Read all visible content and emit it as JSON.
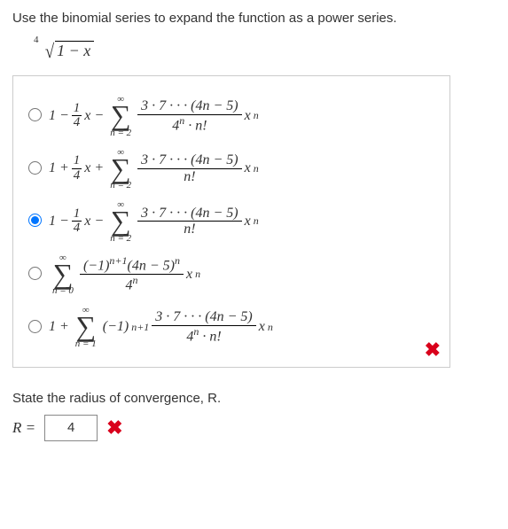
{
  "prompt": "Use the binomial series to expand the function as a power series.",
  "root_degree": "4",
  "radicand": "1 − x",
  "options": [
    {
      "selected": false,
      "prefix_parts": [
        "1 −",
        "frac14",
        "x −"
      ],
      "sigma_lower": "n = 2",
      "numerator": "3 · 7 · · · (4n − 5)",
      "denominator_parts": [
        "4",
        "sup_n",
        " · n!"
      ],
      "trailing_parts": [
        "x",
        "sup_n"
      ]
    },
    {
      "selected": false,
      "prefix_parts": [
        "1 +",
        "frac14",
        "x +"
      ],
      "sigma_lower": "n = 2",
      "numerator": "3 · 7 · · · (4n − 5)",
      "denominator_parts": [
        "n!"
      ],
      "trailing_parts": [
        "x",
        "sup_n"
      ]
    },
    {
      "selected": true,
      "prefix_parts": [
        "1 −",
        "frac14",
        "x −"
      ],
      "sigma_lower": "n = 2",
      "numerator": "3 · 7 · · · (4n − 5)",
      "denominator_parts": [
        "n!"
      ],
      "trailing_parts": [
        "x",
        "sup_n"
      ]
    },
    {
      "selected": false,
      "prefix_parts": [],
      "sigma_lower": "n = 0",
      "numerator_parts": [
        "(−1)",
        "sup_np1",
        "(4n − 5)",
        "sup_n"
      ],
      "denominator_parts": [
        "4",
        "sup_n"
      ],
      "trailing_parts": [
        "x",
        "sup_n"
      ]
    },
    {
      "selected": false,
      "prefix_parts": [
        "1 +"
      ],
      "sigma_lower": "n = 1",
      "inline_before_frac": [
        "(−1)",
        "sup_np1"
      ],
      "numerator": "3 · 7 · · · (4n − 5)",
      "denominator_parts": [
        "4",
        "sup_n",
        " · n!"
      ],
      "trailing_parts": [
        "x",
        "sup_n"
      ]
    }
  ],
  "sigma_upper": "∞",
  "frac14_num": "1",
  "frac14_den": "4",
  "sup_n": "n",
  "sup_np1": "n+1",
  "wrong_mark": "✖",
  "section2_prompt": "State the radius of convergence, R.",
  "R_label": "R =",
  "R_value": "4",
  "colors": {
    "wrong": "#d9001b",
    "border": "#cccccc",
    "text": "#333333"
  }
}
